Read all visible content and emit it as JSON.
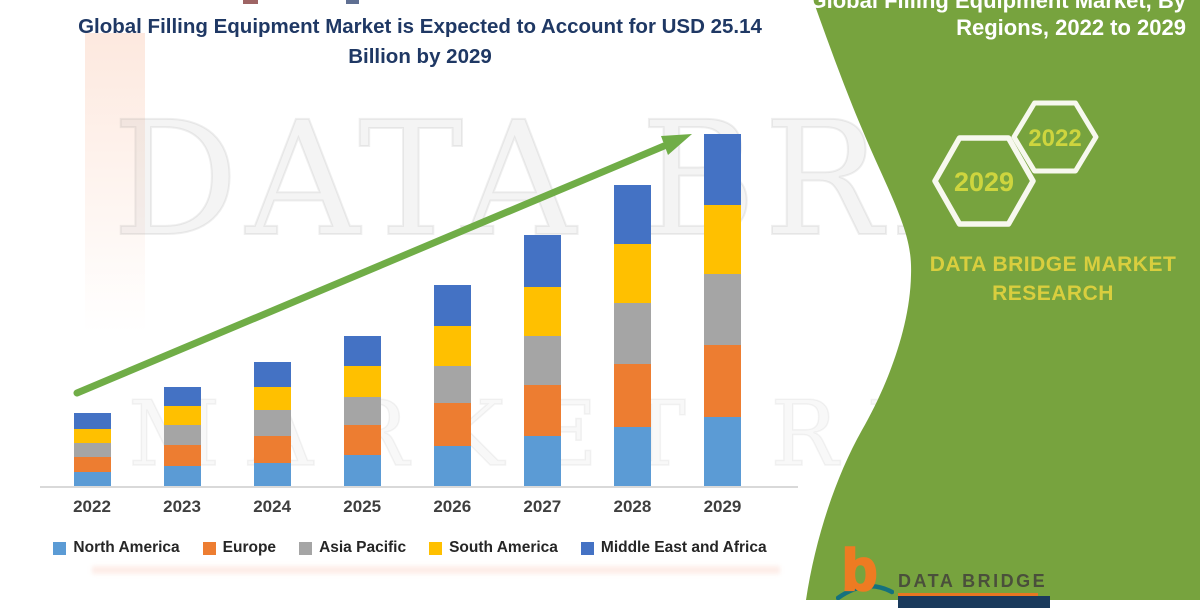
{
  "page": {
    "title_line1": "Global Filling Equipment Market is Expected to Account for USD 25.14",
    "title_line2": "Billion by 2029"
  },
  "watermark": {
    "row1": "DATA BRIDGE",
    "row2": "MARKET RESEARCH"
  },
  "chart_data": {
    "type": "bar",
    "stacked": true,
    "title": "Global Filling Equipment Market is Expected to Account for USD 25.14 Billion by 2029",
    "categories": [
      "2022",
      "2023",
      "2024",
      "2025",
      "2026",
      "2027",
      "2028",
      "2029"
    ],
    "series": [
      {
        "name": "North America",
        "color": "#5b9bd5",
        "values": [
          1.0,
          1.45,
          1.65,
          2.2,
          2.85,
          3.55,
          4.2,
          4.95
        ]
      },
      {
        "name": "Europe",
        "color": "#ed7d31",
        "values": [
          1.05,
          1.5,
          1.9,
          2.15,
          3.05,
          3.7,
          4.5,
          5.1
        ]
      },
      {
        "name": "Asia Pacific",
        "color": "#a5a5a5",
        "values": [
          1.05,
          1.4,
          1.9,
          2.0,
          2.65,
          3.45,
          4.4,
          5.1
        ]
      },
      {
        "name": "South America",
        "color": "#ffc000",
        "values": [
          1.0,
          1.35,
          1.6,
          2.2,
          2.9,
          3.55,
          4.2,
          4.95
        ]
      },
      {
        "name": "Middle East and Africa",
        "color": "#4472c4",
        "values": [
          1.1,
          1.4,
          1.8,
          2.15,
          2.9,
          3.7,
          4.2,
          5.04
        ]
      }
    ],
    "totals_estimated": [
      5.2,
      7.1,
      8.85,
      10.7,
      14.35,
      17.95,
      21.5,
      25.14
    ],
    "unit": "USD Billion (segment values estimated from bar heights; 2029 total labeled 25.14)",
    "xlabel": "",
    "ylabel": "",
    "gridlines": false,
    "y_axis_shown": false,
    "legend_position": "bottom",
    "trend_arrow": "green upward arrow from 2022 bar to 2029 bar top"
  },
  "side_panel": {
    "title_line1": "Global Filling Equipment Market, By",
    "title_line2": "Regions, 2022 to 2029",
    "start_year": "2022",
    "end_year": "2029",
    "brand": "DATA BRIDGE MARKET RESEARCH",
    "background_color": "#77a33e",
    "accent_text_color": "#d9ce3e"
  },
  "footer_logo": {
    "glyph": "b",
    "brand": "DATA BRIDGE"
  },
  "colors": {
    "title_text": "#1f3864",
    "arrow": "#70ad47",
    "axis_line": "#d9d9d9",
    "year_label": "#3f3f3f"
  }
}
